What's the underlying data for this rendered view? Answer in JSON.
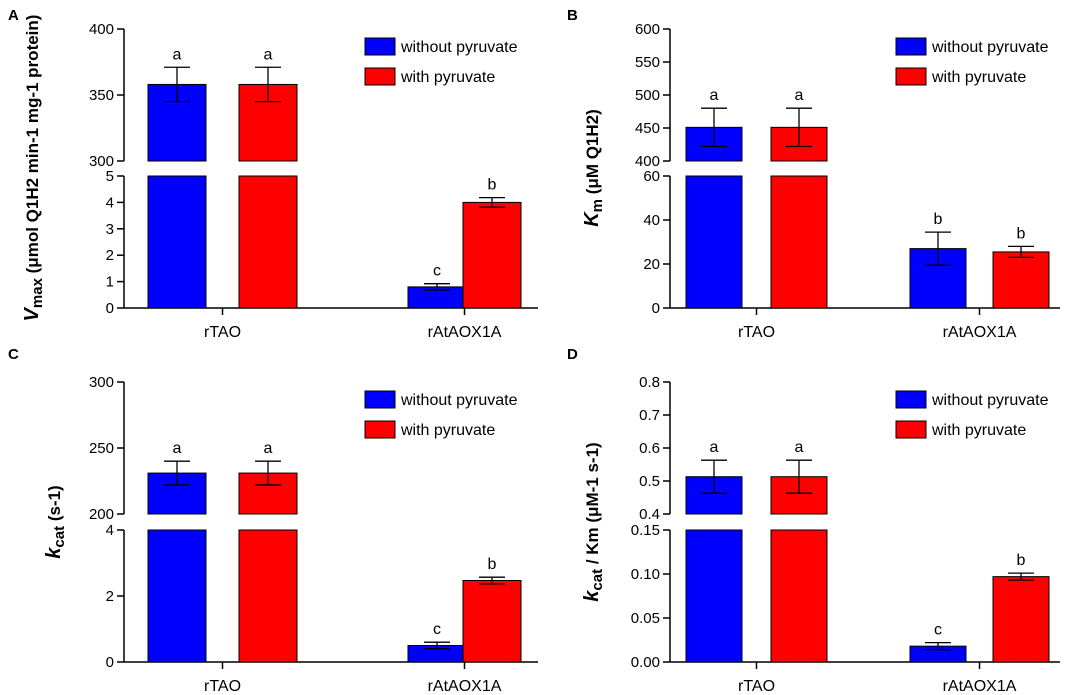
{
  "colors": {
    "without": "#0000FF",
    "with": "#FF0000",
    "axis": "#000000"
  },
  "chart_data": [
    {
      "panel": "A",
      "type": "bar",
      "categories": [
        "rTAO",
        "rAtAOX1A"
      ],
      "ylabel": {
        "line1_main": "V",
        "line1_sub": "max",
        "line2": "(μmol Q1H2 min-1 mg-1 protein)"
      },
      "upper_axis": {
        "ylim": [
          300,
          400
        ],
        "ticks": [
          "300",
          "350",
          "400"
        ]
      },
      "lower_axis": {
        "ylim": [
          0,
          5
        ],
        "ticks": [
          "0",
          "1",
          "2",
          "3",
          "4",
          "5"
        ]
      },
      "legend": [
        "without pyruvate",
        "with pyruvate"
      ],
      "series": [
        {
          "name": "without pyruvate",
          "values": [
            358,
            0.8
          ],
          "errors": [
            13,
            0.12
          ],
          "labels": [
            "a",
            "c"
          ]
        },
        {
          "name": "with pyruvate",
          "values": [
            358,
            4.0
          ],
          "errors": [
            13,
            0.18
          ],
          "labels": [
            "a",
            "b"
          ]
        }
      ]
    },
    {
      "panel": "B",
      "type": "bar",
      "categories": [
        "rTAO",
        "rAtAOX1A"
      ],
      "ylabel": {
        "line1_main": "K",
        "line1_sub": "m",
        "line2": "(μM Q1H2)"
      },
      "upper_axis": {
        "ylim": [
          400,
          600
        ],
        "ticks": [
          "400",
          "450",
          "500",
          "550",
          "600"
        ]
      },
      "lower_axis": {
        "ylim": [
          0,
          60
        ],
        "ticks": [
          "0",
          "20",
          "40",
          "60"
        ]
      },
      "legend": [
        "without pyruvate",
        "with pyruvate"
      ],
      "series": [
        {
          "name": "without pyruvate",
          "values": [
            451,
            27
          ],
          "errors": [
            29,
            7.5
          ],
          "labels": [
            "a",
            "b"
          ]
        },
        {
          "name": "with pyruvate",
          "values": [
            451,
            25.5
          ],
          "errors": [
            29,
            2.5
          ],
          "labels": [
            "a",
            "b"
          ]
        }
      ]
    },
    {
      "panel": "C",
      "type": "bar",
      "categories": [
        "rTAO",
        "rAtAOX1A"
      ],
      "ylabel": {
        "line1_main": "k",
        "line1_sub": "cat",
        "line2": "(s-1)"
      },
      "upper_axis": {
        "ylim": [
          200,
          300
        ],
        "ticks": [
          "200",
          "250",
          "300"
        ]
      },
      "lower_axis": {
        "ylim": [
          0,
          4
        ],
        "ticks": [
          "0",
          "2",
          "4"
        ]
      },
      "legend": [
        "without pyruvate",
        "with pyruvate"
      ],
      "series": [
        {
          "name": "without pyruvate",
          "values": [
            231,
            0.5
          ],
          "errors": [
            9,
            0.1
          ],
          "labels": [
            "a",
            "c"
          ]
        },
        {
          "name": "with pyruvate",
          "values": [
            231,
            2.47
          ],
          "errors": [
            9,
            0.1
          ],
          "labels": [
            "a",
            "b"
          ]
        }
      ]
    },
    {
      "panel": "D",
      "type": "bar",
      "categories": [
        "rTAO",
        "rAtAOX1A"
      ],
      "ylabel": {
        "line1_main": "k",
        "line1_sub": "cat",
        "line2": "/ Km (μM-1 s-1)"
      },
      "upper_axis": {
        "ylim": [
          0.4,
          0.8
        ],
        "ticks": [
          "0.4",
          "0.5",
          "0.6",
          "0.7",
          "0.8"
        ]
      },
      "lower_axis": {
        "ylim": [
          0,
          0.15
        ],
        "ticks": [
          "0.00",
          "0.05",
          "0.10",
          "0.15"
        ]
      },
      "legend": [
        "without pyruvate",
        "with pyruvate"
      ],
      "series": [
        {
          "name": "without pyruvate",
          "values": [
            0.513,
            0.018
          ],
          "errors": [
            0.05,
            0.004
          ],
          "labels": [
            "a",
            "c"
          ]
        },
        {
          "name": "with pyruvate",
          "values": [
            0.513,
            0.097
          ],
          "errors": [
            0.05,
            0.004
          ],
          "labels": [
            "a",
            "b"
          ]
        }
      ]
    }
  ]
}
